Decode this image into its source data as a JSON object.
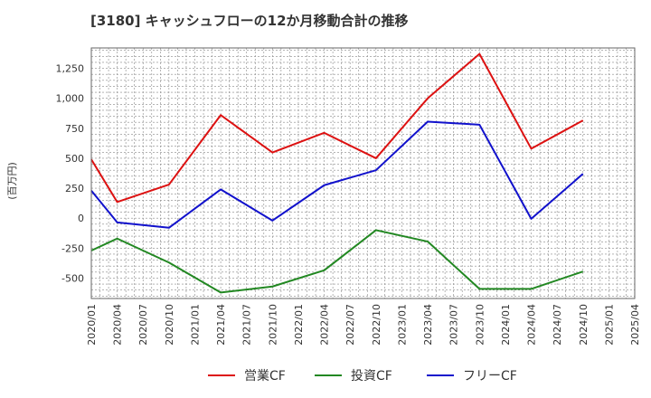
{
  "chart_data": {
    "type": "line",
    "title": "[3180]  キャッシュフローの12か月移動合計の推移",
    "ylabel": "(百万円)",
    "xlabel": "",
    "ylim": [
      -670,
      1420
    ],
    "yticks": [
      -500,
      -250,
      0,
      250,
      500,
      750,
      1000,
      1250
    ],
    "ytick_labels": [
      "-500",
      "-250",
      "0",
      "250",
      "500",
      "750",
      "1,000",
      "1,250"
    ],
    "categories": [
      "2020/01",
      "2020/04",
      "2020/07",
      "2020/10",
      "2021/01",
      "2021/04",
      "2021/07",
      "2021/10",
      "2022/01",
      "2022/04",
      "2022/07",
      "2022/10",
      "2023/01",
      "2023/04",
      "2023/07",
      "2023/10",
      "2024/01",
      "2024/04",
      "2024/07",
      "2024/10",
      "2025/01",
      "2025/04"
    ],
    "series": [
      {
        "name": "営業CF",
        "color": "#dd1111",
        "values": [
          490,
          135,
          null,
          280,
          null,
          860,
          null,
          548,
          null,
          712,
          null,
          500,
          null,
          1000,
          null,
          1370,
          null,
          580,
          null,
          815,
          null,
          null
        ]
      },
      {
        "name": "投資CF",
        "color": "#228822",
        "values": [
          -270,
          -170,
          null,
          -370,
          null,
          -620,
          null,
          -570,
          null,
          -435,
          null,
          -100,
          null,
          -195,
          null,
          -590,
          null,
          -590,
          null,
          -445,
          null,
          null
        ]
      },
      {
        "name": "フリーCF",
        "color": "#1111cc",
        "values": [
          230,
          -35,
          null,
          -80,
          null,
          240,
          null,
          -20,
          null,
          275,
          null,
          400,
          null,
          805,
          null,
          780,
          null,
          -5,
          null,
          370,
          null,
          null
        ]
      }
    ],
    "grid": true,
    "legend_position": "bottom-center"
  }
}
